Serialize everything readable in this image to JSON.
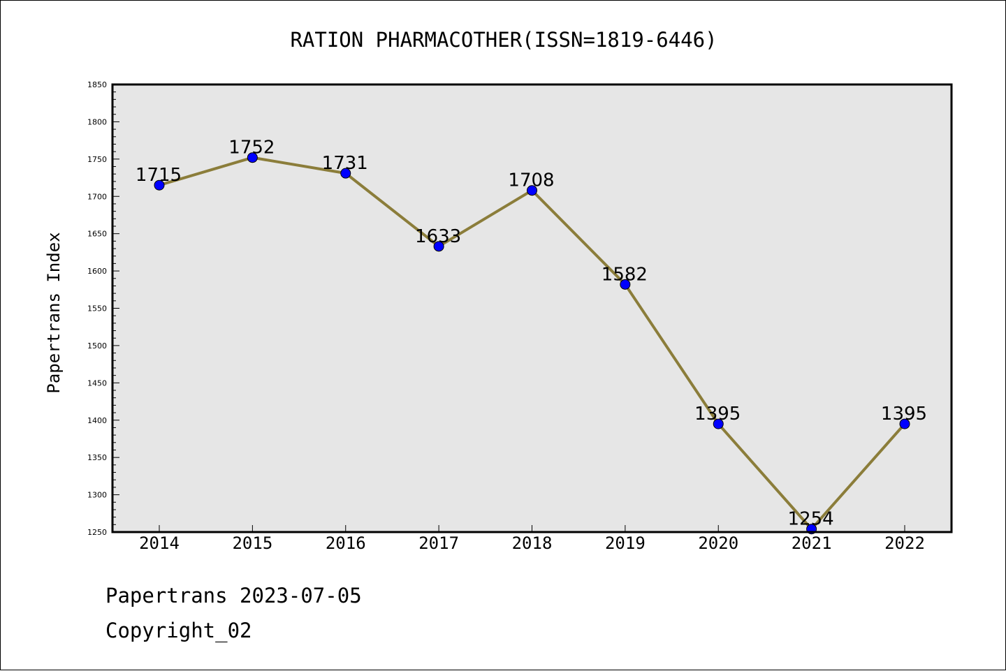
{
  "chart_data": {
    "type": "line",
    "title": "RATION PHARMACOTHER(ISSN=1819-6446)",
    "ylabel": "Papertrans Index",
    "xlabel": "",
    "x": [
      "2014",
      "2015",
      "2016",
      "2017",
      "2018",
      "2019",
      "2020",
      "2021",
      "2022"
    ],
    "series": [
      {
        "values": [
          1715,
          1752,
          1731,
          1633,
          1708,
          1582,
          1395,
          1254,
          1395
        ]
      }
    ],
    "ylim": [
      1250,
      1850
    ],
    "yticks": [
      1250,
      1300,
      1350,
      1400,
      1450,
      1500,
      1550,
      1600,
      1650,
      1700,
      1750,
      1800,
      1850
    ],
    "grid": false,
    "colors": {
      "line": "#8b7d3a",
      "marker": "#0000ff",
      "plot_background": "#e6e6e6"
    }
  },
  "footer": {
    "date_line": "Papertrans 2023-07-05",
    "copyright_line": "Copyright_02"
  }
}
